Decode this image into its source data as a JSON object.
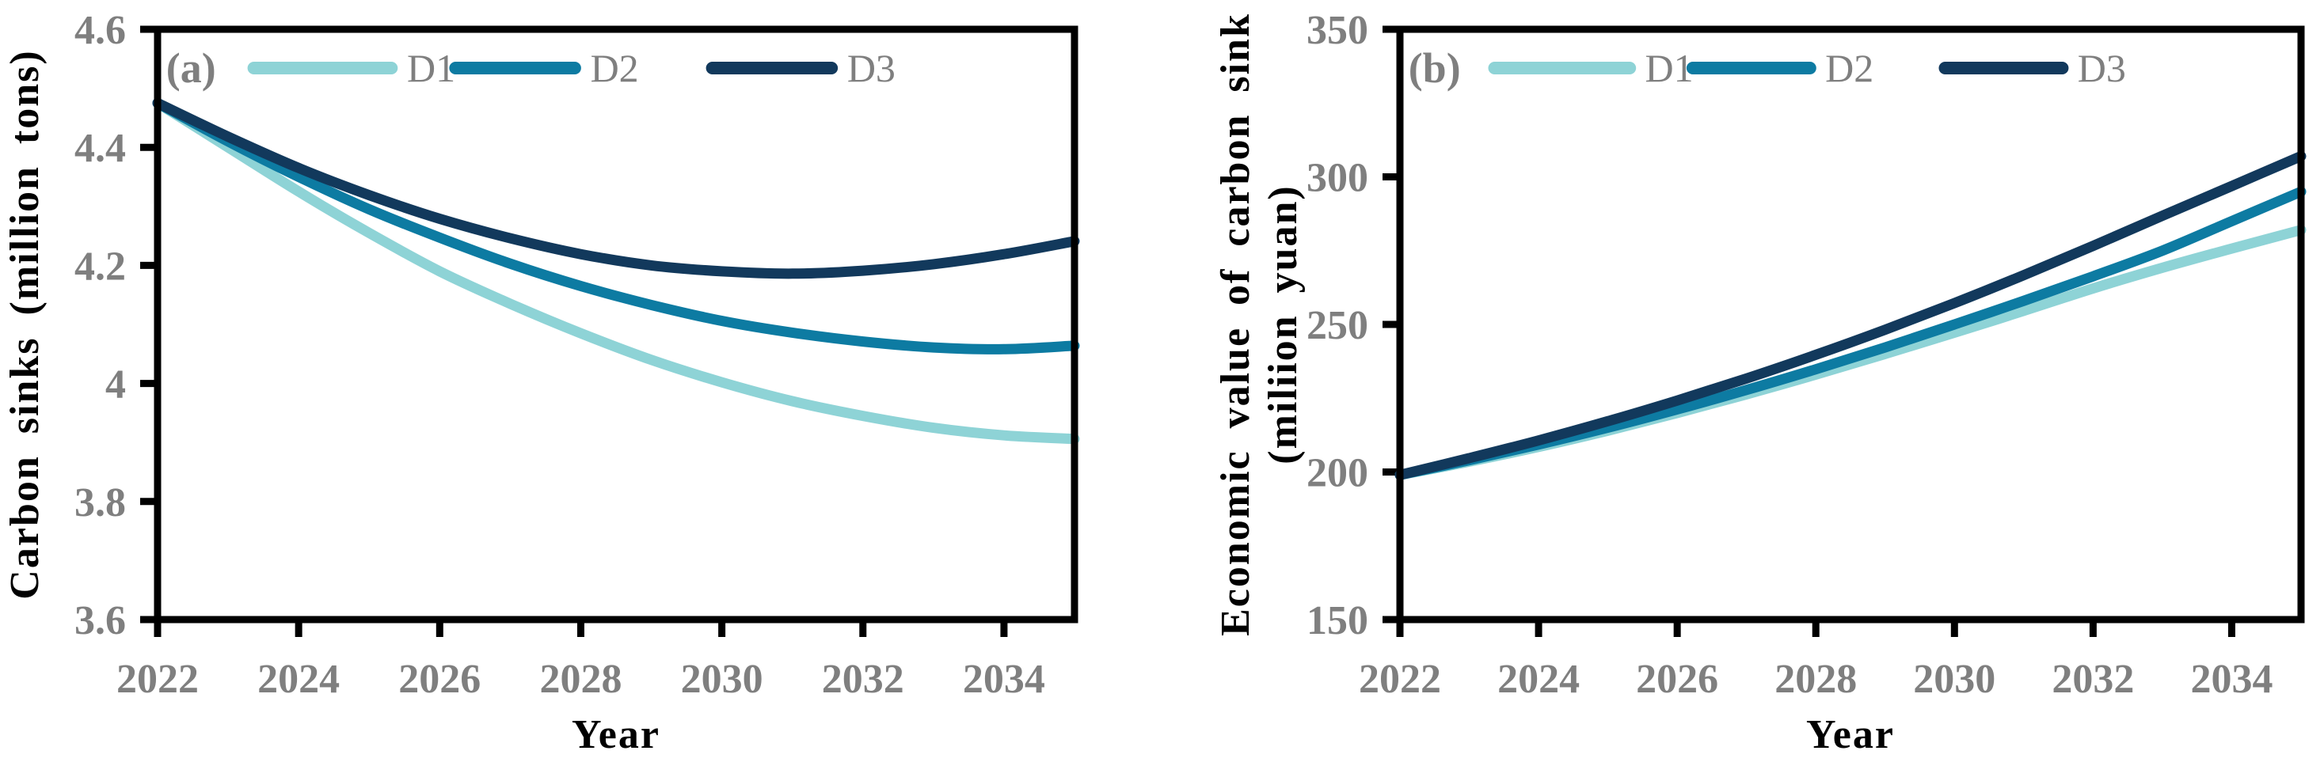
{
  "figure": {
    "background": "#ffffff",
    "axis_color": "#000000",
    "tick_text_color": "#7f7f7f",
    "title_text_color": "#000000"
  },
  "chart_data": [
    {
      "type": "line",
      "panel_label": "(a)",
      "xlabel": "Year",
      "ylabel_lines": [
        "Carbon sinks (million tons)"
      ],
      "xlim": [
        2022,
        2035
      ],
      "ylim": [
        3.6,
        4.6
      ],
      "grid": false,
      "legend_position": "top-inside",
      "x": [
        2022,
        2023,
        2024,
        2025,
        2026,
        2027,
        2028,
        2029,
        2030,
        2031,
        2032,
        2033,
        2034,
        2035
      ],
      "xticks": {
        "values": [
          2022,
          2024,
          2026,
          2028,
          2030,
          2032,
          2034
        ],
        "labels": [
          "2022",
          "2024",
          "2026",
          "2028",
          "2030",
          "2032",
          "2034"
        ]
      },
      "yticks": {
        "values": [
          4.6,
          4.4,
          4.2,
          4.0,
          3.8,
          3.6
        ],
        "labels": [
          "4.6",
          "4.4",
          "4.2",
          "4",
          "3.8",
          "3.6"
        ]
      },
      "series": [
        {
          "name": "D1",
          "color": "#8ed3d6",
          "values": [
            4.475,
            4.4,
            4.325,
            4.255,
            4.19,
            4.135,
            4.085,
            4.04,
            4.002,
            3.97,
            3.945,
            3.925,
            3.912,
            3.906
          ]
        },
        {
          "name": "D2",
          "color": "#0d7ba2",
          "values": [
            4.475,
            4.41,
            4.35,
            4.295,
            4.247,
            4.203,
            4.165,
            4.133,
            4.106,
            4.086,
            4.071,
            4.061,
            4.058,
            4.064
          ]
        },
        {
          "name": "D3",
          "color": "#12395c",
          "values": [
            4.475,
            4.418,
            4.365,
            4.319,
            4.279,
            4.246,
            4.219,
            4.2,
            4.19,
            4.186,
            4.191,
            4.202,
            4.219,
            4.241
          ]
        }
      ]
    },
    {
      "type": "line",
      "panel_label": "(b)",
      "xlabel": "Year",
      "ylabel_lines": [
        "Economic value of carbon sink",
        "(miliion yuan)"
      ],
      "xlim": [
        2022,
        2035
      ],
      "ylim": [
        150,
        350
      ],
      "grid": false,
      "legend_position": "top-inside",
      "x": [
        2022,
        2023,
        2024,
        2025,
        2026,
        2027,
        2028,
        2029,
        2030,
        2031,
        2032,
        2033,
        2034,
        2035
      ],
      "xticks": {
        "values": [
          2022,
          2024,
          2026,
          2028,
          2030,
          2032,
          2034
        ],
        "labels": [
          "2022",
          "2024",
          "2026",
          "2028",
          "2030",
          "2032",
          "2034"
        ]
      },
      "yticks": {
        "values": [
          350,
          300,
          250,
          200,
          150
        ],
        "labels": [
          "350",
          "300",
          "250",
          "200",
          "150"
        ]
      },
      "series": [
        {
          "name": "D1",
          "color": "#8ed3d6",
          "values": [
            199,
            203.5,
            208.5,
            214,
            220,
            226.3,
            233,
            240,
            247.2,
            254.6,
            262.2,
            269.2,
            275.7,
            282
          ]
        },
        {
          "name": "D2",
          "color": "#0d7ba2",
          "values": [
            199,
            204,
            209.3,
            215,
            221.2,
            227.8,
            234.8,
            242.2,
            250,
            258,
            266.3,
            275,
            285,
            295
          ]
        },
        {
          "name": "D3",
          "color": "#12395c",
          "values": [
            199,
            204.7,
            210.7,
            217.2,
            224.2,
            231.7,
            239.7,
            248.2,
            257.2,
            266.7,
            276.6,
            286.8,
            296.9,
            307
          ]
        }
      ]
    }
  ]
}
